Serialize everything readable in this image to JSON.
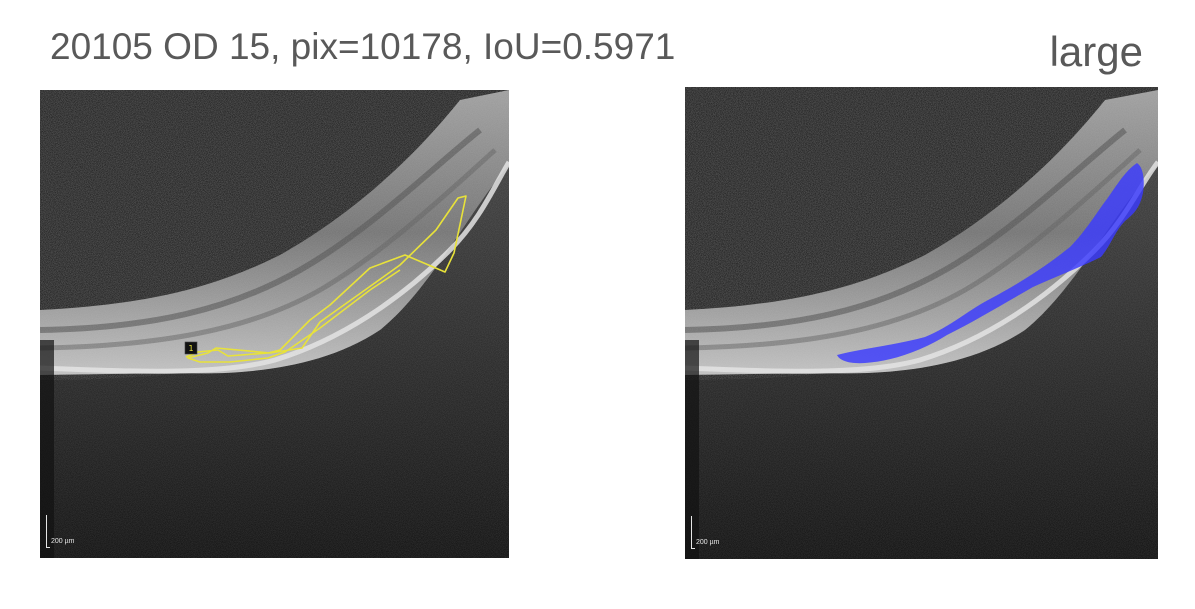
{
  "title": "20105 OD 15, pix=10178, IoU=0.5971",
  "size_label": "large",
  "left_panel": {
    "scale_label": "200 µm",
    "region_marker": "1",
    "annotation_color": "#e8e23a"
  },
  "right_panel": {
    "scale_label": "200 µm",
    "segmentation_color": "#3a3aff"
  }
}
